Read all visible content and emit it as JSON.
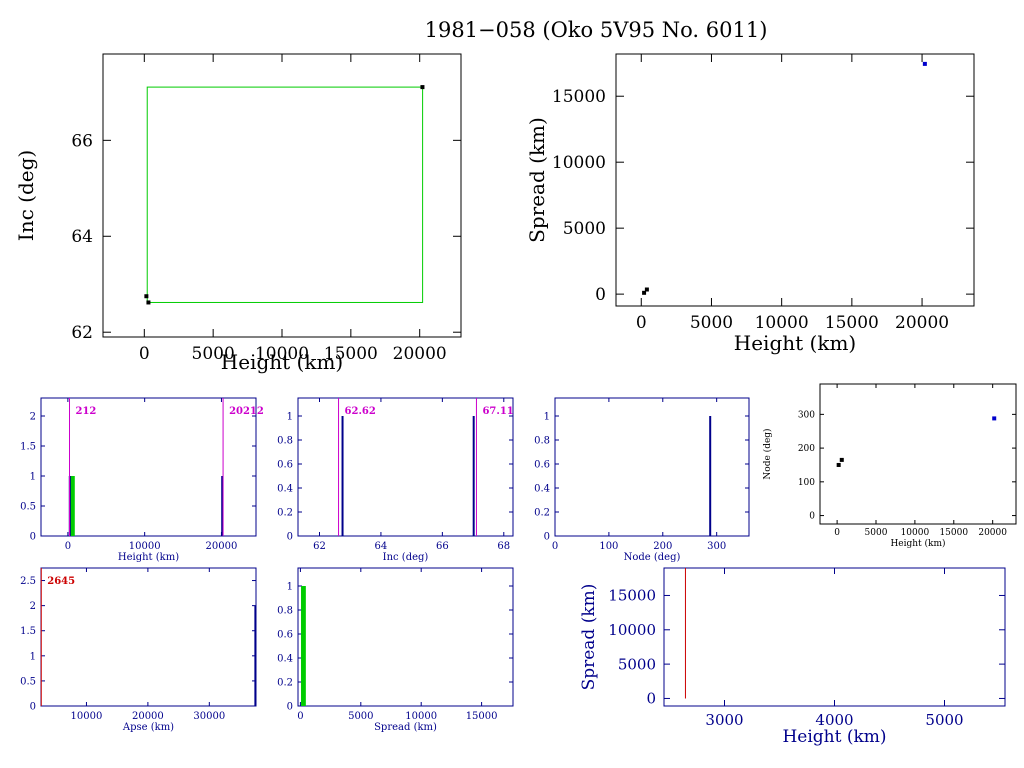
{
  "title": "1981−058 (Oko 5V95 No. 6011)",
  "colors": {
    "black": "#000000",
    "blue": "#0000cc",
    "navy": "#00008b",
    "green": "#00cc00",
    "magenta": "#cc00cc",
    "red": "#cc0000"
  },
  "chart_data": [
    {
      "id": "inc-height",
      "type": "scatter",
      "xlabel": "Height (km)",
      "ylabel": "Inc (deg)",
      "xlim": [
        -3000,
        23000
      ],
      "ylim": [
        61.9,
        67.8
      ],
      "xticks": [
        0,
        5000,
        10000,
        15000,
        20000
      ],
      "yticks": [
        62,
        64,
        66
      ],
      "points": [
        {
          "x": 20200,
          "y": 67.11,
          "color": "black"
        },
        {
          "x": 150,
          "y": 62.75,
          "color": "black"
        },
        {
          "x": 300,
          "y": 62.62,
          "color": "black"
        }
      ],
      "box": {
        "x": [
          212,
          20212
        ],
        "y": [
          62.62,
          67.11
        ],
        "color": "green"
      }
    },
    {
      "id": "spread-height",
      "type": "scatter",
      "xlabel": "Height (km)",
      "ylabel": "Spread (km)",
      "xlim": [
        -1800,
        23700
      ],
      "ylim": [
        -900,
        18200
      ],
      "xticks": [
        0,
        5000,
        10000,
        15000,
        20000
      ],
      "yticks": [
        0,
        5000,
        10000,
        15000
      ],
      "points": [
        {
          "x": 20200,
          "y": 17450,
          "color": "blue"
        },
        {
          "x": 400,
          "y": 350,
          "color": "black"
        },
        {
          "x": 200,
          "y": 100,
          "color": "black"
        }
      ]
    },
    {
      "id": "hist-height",
      "type": "bar",
      "xlabel": "Height (km)",
      "ylabel": "",
      "xlim": [
        -3500,
        24500
      ],
      "ylim": [
        0,
        2.3
      ],
      "xticks": [
        0,
        10000,
        20000
      ],
      "yticks": [
        0,
        0.5,
        1,
        1.5,
        2
      ],
      "bars": [
        {
          "x0": 180,
          "x1": 900,
          "value": 1,
          "color": "green"
        }
      ],
      "lines": [
        {
          "x": 20100,
          "value": 1,
          "color": "navy"
        },
        {
          "x": 250,
          "value": 1,
          "color": "navy"
        }
      ],
      "markers": [
        {
          "x": 212,
          "label": "212",
          "color": "magenta"
        },
        {
          "x": 20212,
          "label": "20212",
          "color": "magenta"
        }
      ]
    },
    {
      "id": "hist-inc",
      "type": "bar",
      "xlabel": "Inc (deg)",
      "ylabel": "",
      "xlim": [
        61.3,
        68.3
      ],
      "ylim": [
        0,
        1.15
      ],
      "xticks": [
        62,
        64,
        66,
        68
      ],
      "yticks": [
        0,
        0.2,
        0.4,
        0.6,
        0.8,
        1
      ],
      "bars": [],
      "lines": [
        {
          "x": 62.75,
          "value": 1,
          "color": "navy"
        },
        {
          "x": 67.02,
          "value": 1,
          "color": "navy"
        }
      ],
      "markers": [
        {
          "x": 62.62,
          "label": "62.62",
          "color": "magenta"
        },
        {
          "x": 67.11,
          "label": "67.11",
          "color": "magenta"
        }
      ]
    },
    {
      "id": "hist-node",
      "type": "bar",
      "xlabel": "Node (deg)",
      "ylabel": "",
      "xlim": [
        0,
        360
      ],
      "ylim": [
        0,
        1.15
      ],
      "xticks": [
        0,
        100,
        200,
        300
      ],
      "yticks": [
        0,
        0.2,
        0.4,
        0.6,
        0.8,
        1
      ],
      "bars": [],
      "lines": [
        {
          "x": 288,
          "value": 1,
          "color": "navy"
        }
      ],
      "markers": []
    },
    {
      "id": "node-height",
      "type": "scatter",
      "xlabel": "Height (km)",
      "ylabel": "Node (deg)",
      "xlim": [
        -2200,
        23000
      ],
      "ylim": [
        -25,
        390
      ],
      "xticks": [
        0,
        5000,
        10000,
        15000,
        20000
      ],
      "yticks": [
        0,
        100,
        200,
        300
      ],
      "points": [
        {
          "x": 20200,
          "y": 288,
          "color": "blue"
        },
        {
          "x": 200,
          "y": 150,
          "color": "black"
        },
        {
          "x": 600,
          "y": 165,
          "color": "black"
        }
      ]
    },
    {
      "id": "hist-apse",
      "type": "bar",
      "xlabel": "Apse (km)",
      "ylabel": "",
      "xlim": [
        2600,
        37600
      ],
      "ylim": [
        0,
        2.75
      ],
      "xticks": [
        10000,
        20000,
        30000
      ],
      "yticks": [
        0,
        0.5,
        1,
        1.5,
        2,
        2.5
      ],
      "bars": [],
      "lines": [
        {
          "x": 37500,
          "value": 2,
          "color": "navy"
        }
      ],
      "markers": [
        {
          "x": 2645,
          "label": "2645",
          "color": "red"
        }
      ]
    },
    {
      "id": "hist-spread",
      "type": "bar",
      "xlabel": "Spread (km)",
      "ylabel": "",
      "xlim": [
        -200,
        17600
      ],
      "ylim": [
        0,
        1.15
      ],
      "xticks": [
        0,
        5000,
        10000,
        15000
      ],
      "yticks": [
        0,
        0.2,
        0.4,
        0.6,
        0.8,
        1
      ],
      "bars": [
        {
          "x0": 50,
          "x1": 450,
          "value": 1,
          "color": "green"
        }
      ],
      "lines": [],
      "markers": []
    },
    {
      "id": "spread-apse",
      "type": "line",
      "xlabel": "Height (km)",
      "ylabel": "Spread (km)",
      "xlim": [
        2450,
        5550
      ],
      "ylim": [
        -1100,
        19000
      ],
      "xticks": [
        3000,
        4000,
        5000
      ],
      "yticks": [
        0,
        5000,
        10000,
        15000
      ],
      "vline": {
        "x": 2645,
        "y0": 0,
        "y1": 19000,
        "color": "red"
      }
    }
  ]
}
